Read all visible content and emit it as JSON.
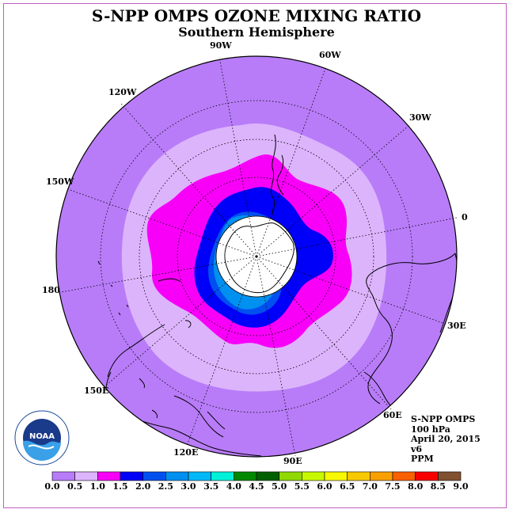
{
  "title": "S-NPP OMPS OZONE MIXING RATIO",
  "subtitle": "Southern Hemisphere",
  "longitude_labels": [
    "90W",
    "60W",
    "30W",
    "0",
    "30E",
    "60E",
    "90E",
    "120E",
    "150E",
    "180",
    "150W",
    "120W"
  ],
  "info": {
    "instrument": "S-NPP OMPS",
    "level": "100 hPa",
    "date": "April 20, 2015",
    "version": "v6",
    "units": "PPM"
  },
  "logo_text": "NOAA",
  "colorbar": {
    "ticks": [
      "0.0",
      "0.5",
      "1.0",
      "1.5",
      "2.0",
      "2.5",
      "3.0",
      "3.5",
      "4.0",
      "4.5",
      "5.0",
      "5.5",
      "6.0",
      "6.5",
      "7.0",
      "7.5",
      "8.0",
      "8.5",
      "9.0"
    ],
    "colors": [
      "#b87cf8",
      "#dcb4fc",
      "#f800f8",
      "#0000f8",
      "#0050f0",
      "#0090f0",
      "#00b8f8",
      "#00f0d8",
      "#008800",
      "#006000",
      "#90d800",
      "#c8f800",
      "#f8f800",
      "#f8c800",
      "#f8a000",
      "#f86000",
      "#f80000",
      "#805030"
    ]
  },
  "map_colors": {
    "level_0_5": "#b87cf8",
    "level_1_0": "#dcb4fc",
    "level_1_5": "#f800f8",
    "level_2_0": "#0000f8",
    "level_2_5": "#0050f0",
    "level_3_0": "#0090f0",
    "missing": "#ffffff"
  }
}
